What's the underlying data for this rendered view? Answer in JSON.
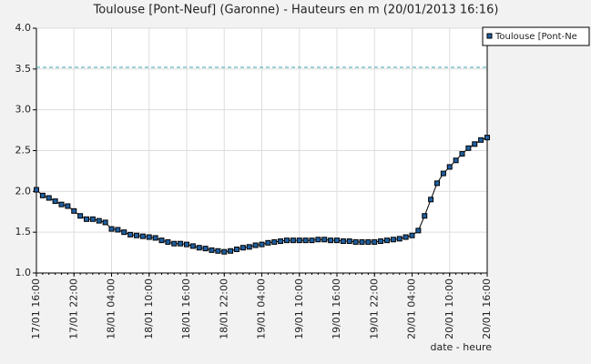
{
  "chart_data": {
    "type": "line",
    "title": "Toulouse [Pont-Neuf] (Garonne) - Hauteurs en m (20/01/2013 16:16)",
    "x_label": "date - heure",
    "x": [
      "17/01 16:00",
      "17/01 17:00",
      "17/01 18:00",
      "17/01 19:00",
      "17/01 20:00",
      "17/01 21:00",
      "17/01 22:00",
      "17/01 23:00",
      "18/01 00:00",
      "18/01 01:00",
      "18/01 02:00",
      "18/01 03:00",
      "18/01 04:00",
      "18/01 05:00",
      "18/01 06:00",
      "18/01 07:00",
      "18/01 08:00",
      "18/01 09:00",
      "18/01 10:00",
      "18/01 11:00",
      "18/01 12:00",
      "18/01 13:00",
      "18/01 14:00",
      "18/01 15:00",
      "18/01 16:00",
      "18/01 17:00",
      "18/01 18:00",
      "18/01 19:00",
      "18/01 20:00",
      "18/01 21:00",
      "18/01 22:00",
      "18/01 23:00",
      "19/01 00:00",
      "19/01 01:00",
      "19/01 02:00",
      "19/01 03:00",
      "19/01 04:00",
      "19/01 05:00",
      "19/01 06:00",
      "19/01 07:00",
      "19/01 08:00",
      "19/01 09:00",
      "19/01 10:00",
      "19/01 11:00",
      "19/01 12:00",
      "19/01 13:00",
      "19/01 14:00",
      "19/01 15:00",
      "19/01 16:00",
      "19/01 17:00",
      "19/01 18:00",
      "19/01 19:00",
      "19/01 20:00",
      "19/01 21:00",
      "19/01 22:00",
      "19/01 23:00",
      "20/01 00:00",
      "20/01 01:00",
      "20/01 02:00",
      "20/01 03:00",
      "20/01 04:00",
      "20/01 05:00",
      "20/01 06:00",
      "20/01 07:00",
      "20/01 08:00",
      "20/01 09:00",
      "20/01 10:00",
      "20/01 11:00",
      "20/01 12:00",
      "20/01 13:00",
      "20/01 14:00",
      "20/01 15:00",
      "20/01 16:00"
    ],
    "series": [
      {
        "name": "Toulouse [Pont-Ne",
        "color": "#1f5fa0",
        "values": [
          2.02,
          1.95,
          1.92,
          1.88,
          1.84,
          1.82,
          1.76,
          1.7,
          1.66,
          1.66,
          1.64,
          1.62,
          1.54,
          1.53,
          1.5,
          1.47,
          1.46,
          1.45,
          1.44,
          1.43,
          1.4,
          1.38,
          1.36,
          1.36,
          1.35,
          1.33,
          1.31,
          1.3,
          1.28,
          1.27,
          1.26,
          1.27,
          1.29,
          1.31,
          1.32,
          1.34,
          1.35,
          1.37,
          1.38,
          1.39,
          1.4,
          1.4,
          1.4,
          1.4,
          1.4,
          1.41,
          1.41,
          1.4,
          1.4,
          1.39,
          1.39,
          1.38,
          1.38,
          1.38,
          1.38,
          1.39,
          1.4,
          1.41,
          1.42,
          1.44,
          1.46,
          1.52,
          1.7,
          1.9,
          2.1,
          2.22,
          2.3,
          2.38,
          2.46,
          2.53,
          2.58,
          2.63,
          2.66
        ]
      }
    ],
    "threshold": 3.52,
    "threshold_color": "#3aa0b0",
    "xticks": [
      "17/01 16:00",
      "17/01 22:00",
      "18/01 04:00",
      "18/01 10:00",
      "18/01 16:00",
      "18/01 22:00",
      "19/01 04:00",
      "19/01 10:00",
      "19/01 16:00",
      "19/01 22:00",
      "20/01 04:00",
      "20/01 10:00",
      "20/01 16:00"
    ],
    "ylim": [
      1,
      4
    ],
    "yticks": [
      {
        "value": 1,
        "label": "1.0"
      },
      {
        "value": 1.5,
        "label": "1.5"
      },
      {
        "value": 2,
        "label": "2.0"
      },
      {
        "value": 2.5,
        "label": "2.5"
      },
      {
        "value": 3,
        "label": "3.0"
      },
      {
        "value": 3.5,
        "label": "3.5"
      },
      {
        "value": 4,
        "label": "4.0"
      }
    ],
    "grid": true,
    "legend": "top-right"
  }
}
